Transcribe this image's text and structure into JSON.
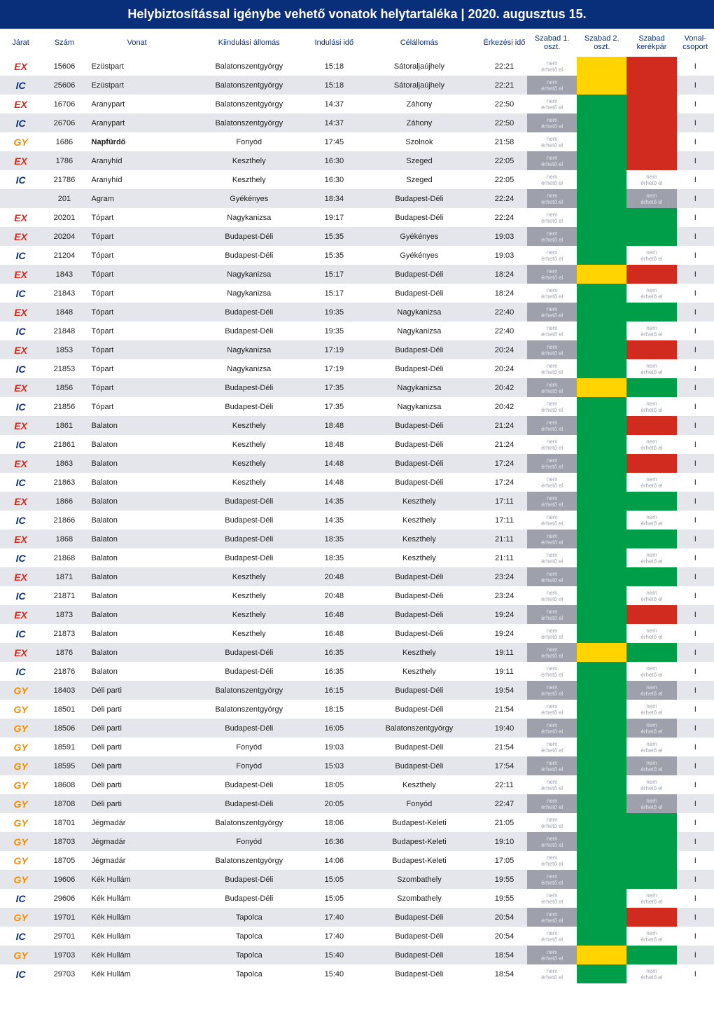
{
  "title": "Helybiztosítással igénybe vehető vonatok helytartaléka | 2020. augusztus 15.",
  "jarat_colors": {
    "EX": "#d12a1f",
    "IC": "#0a2f7a",
    "GY": "#f28c00",
    "": "#202020"
  },
  "headers": {
    "jarat": "Járat",
    "szam": "Szám",
    "vonat": "Vonat",
    "kiind": "Kiindulási állomás",
    "iido": "Indulási idő",
    "cel": "Célállomás",
    "eido": "Érkezési idő",
    "sz1": "Szabad 1. oszt.",
    "sz2": "Szabad 2. oszt.",
    "szk": "Szabad kerékpár",
    "vcs": "Vonal-csoport"
  },
  "cell_note": "nem érhető el",
  "rows": [
    {
      "j": "EX",
      "s": "15606",
      "v": "Ezüstpart",
      "k": "Balatonszentgyörgy",
      "ii": "15:18",
      "c": "Sátoraljaújhely",
      "ei": "22:21",
      "c1": "wn",
      "c2": "y",
      "c3": "r",
      "vc": "I"
    },
    {
      "j": "IC",
      "s": "25606",
      "v": "Ezüstpart",
      "k": "Balatonszentgyörgy",
      "ii": "15:18",
      "c": "Sátoraljaújhely",
      "ei": "22:21",
      "c1": "gn",
      "c2": "y",
      "c3": "r",
      "vc": "I"
    },
    {
      "j": "EX",
      "s": "16706",
      "v": "Aranypart",
      "k": "Balatonszentgyörgy",
      "ii": "14:37",
      "c": "Záhony",
      "ei": "22:50",
      "c1": "wn",
      "c2": "g",
      "c3": "r",
      "vc": "I"
    },
    {
      "j": "IC",
      "s": "26706",
      "v": "Aranypart",
      "k": "Balatonszentgyörgy",
      "ii": "14:37",
      "c": "Záhony",
      "ei": "22:50",
      "c1": "gn",
      "c2": "g",
      "c3": "r",
      "vc": "I"
    },
    {
      "j": "GY",
      "s": "1686",
      "v": "Napfürdő",
      "vb": true,
      "k": "Fonyód",
      "ii": "17:45",
      "c": "Szolnok",
      "ei": "21:58",
      "c1": "wn",
      "c2": "g",
      "c3": "r",
      "vc": "I"
    },
    {
      "j": "EX",
      "s": "1786",
      "v": "Aranyhíd",
      "k": "Keszthely",
      "ii": "16:30",
      "c": "Szeged",
      "ei": "22:05",
      "c1": "gn",
      "c2": "g",
      "c3": "r",
      "vc": "I"
    },
    {
      "j": "IC",
      "s": "21786",
      "v": "Aranyhíd",
      "k": "Keszthely",
      "ii": "16:30",
      "c": "Szeged",
      "ei": "22:05",
      "c1": "wn",
      "c2": "g",
      "c3": "wn",
      "vc": "I"
    },
    {
      "j": "",
      "s": "201",
      "v": "Agram",
      "k": "Gyékényes",
      "ii": "18:34",
      "c": "Budapest-Déli",
      "ei": "22:24",
      "c1": "gn",
      "c2": "g",
      "c3": "gn",
      "vc": "I"
    },
    {
      "j": "EX",
      "s": "20201",
      "v": "Tópart",
      "k": "Nagykanizsa",
      "ii": "19:17",
      "c": "Budapest-Déli",
      "ei": "22:24",
      "c1": "wn",
      "c2": "g",
      "c3": "g",
      "vc": "I"
    },
    {
      "j": "EX",
      "s": "20204",
      "v": "Tópart",
      "k": "Budapest-Déli",
      "ii": "15:35",
      "c": "Gyékényes",
      "ei": "19:03",
      "c1": "gn",
      "c2": "g",
      "c3": "g",
      "vc": "I"
    },
    {
      "j": "IC",
      "s": "21204",
      "v": "Tópart",
      "k": "Budapest-Déli",
      "ii": "15:35",
      "c": "Gyékényes",
      "ei": "19:03",
      "c1": "wn",
      "c2": "g",
      "c3": "wn",
      "vc": "I"
    },
    {
      "j": "EX",
      "s": "1843",
      "v": "Tópart",
      "k": "Nagykanizsa",
      "ii": "15:17",
      "c": "Budapest-Déli",
      "ei": "18:24",
      "c1": "gn",
      "c2": "y",
      "c3": "r",
      "vc": "I"
    },
    {
      "j": "IC",
      "s": "21843",
      "v": "Tópart",
      "k": "Nagykanizsa",
      "ii": "15:17",
      "c": "Budapest-Déli",
      "ei": "18:24",
      "c1": "wn",
      "c2": "g",
      "c3": "wn",
      "vc": "I"
    },
    {
      "j": "EX",
      "s": "1848",
      "v": "Tópart",
      "k": "Budapest-Déli",
      "ii": "19:35",
      "c": "Nagykanizsa",
      "ei": "22:40",
      "c1": "gn",
      "c2": "g",
      "c3": "g",
      "vc": "I"
    },
    {
      "j": "IC",
      "s": "21848",
      "v": "Tópart",
      "k": "Budapest-Déli",
      "ii": "19:35",
      "c": "Nagykanizsa",
      "ei": "22:40",
      "c1": "wn",
      "c2": "g",
      "c3": "wn",
      "vc": "I"
    },
    {
      "j": "EX",
      "s": "1853",
      "v": "Tópart",
      "k": "Nagykanizsa",
      "ii": "17:19",
      "c": "Budapest-Déli",
      "ei": "20:24",
      "c1": "gn",
      "c2": "g",
      "c3": "r",
      "vc": "I"
    },
    {
      "j": "IC",
      "s": "21853",
      "v": "Tópart",
      "k": "Nagykanizsa",
      "ii": "17:19",
      "c": "Budapest-Déli",
      "ei": "20:24",
      "c1": "wn",
      "c2": "g",
      "c3": "wn",
      "vc": "I"
    },
    {
      "j": "EX",
      "s": "1856",
      "v": "Tópart",
      "k": "Budapest-Déli",
      "ii": "17:35",
      "c": "Nagykanizsa",
      "ei": "20:42",
      "c1": "gn",
      "c2": "y",
      "c3": "g",
      "vc": "I"
    },
    {
      "j": "IC",
      "s": "21856",
      "v": "Tópart",
      "k": "Budapest-Déli",
      "ii": "17:35",
      "c": "Nagykanizsa",
      "ei": "20:42",
      "c1": "wn",
      "c2": "g",
      "c3": "wn",
      "vc": "I"
    },
    {
      "j": "EX",
      "s": "1861",
      "v": "Balaton",
      "k": "Keszthely",
      "ii": "18:48",
      "c": "Budapest-Déli",
      "ei": "21:24",
      "c1": "gn",
      "c2": "g",
      "c3": "r",
      "vc": "I"
    },
    {
      "j": "IC",
      "s": "21861",
      "v": "Balaton",
      "k": "Keszthely",
      "ii": "18:48",
      "c": "Budapest-Déli",
      "ei": "21:24",
      "c1": "wn",
      "c2": "g",
      "c3": "wn",
      "vc": "I"
    },
    {
      "j": "EX",
      "s": "1863",
      "v": "Balaton",
      "k": "Keszthely",
      "ii": "14:48",
      "c": "Budapest-Déli",
      "ei": "17:24",
      "c1": "gn",
      "c2": "g",
      "c3": "r",
      "vc": "I"
    },
    {
      "j": "IC",
      "s": "21863",
      "v": "Balaton",
      "k": "Keszthely",
      "ii": "14:48",
      "c": "Budapest-Déli",
      "ei": "17:24",
      "c1": "wn",
      "c2": "g",
      "c3": "wn",
      "vc": "I"
    },
    {
      "j": "EX",
      "s": "1866",
      "v": "Balaton",
      "k": "Budapest-Déli",
      "ii": "14:35",
      "c": "Keszthely",
      "ei": "17:11",
      "c1": "gn",
      "c2": "g",
      "c3": "g",
      "vc": "I"
    },
    {
      "j": "IC",
      "s": "21866",
      "v": "Balaton",
      "k": "Budapest-Déli",
      "ii": "14:35",
      "c": "Keszthely",
      "ei": "17:11",
      "c1": "wn",
      "c2": "g",
      "c3": "wn",
      "vc": "I"
    },
    {
      "j": "EX",
      "s": "1868",
      "v": "Balaton",
      "k": "Budapest-Déli",
      "ii": "18:35",
      "c": "Keszthely",
      "ei": "21:11",
      "c1": "gn",
      "c2": "g",
      "c3": "g",
      "vc": "I"
    },
    {
      "j": "IC",
      "s": "21868",
      "v": "Balaton",
      "k": "Budapest-Déli",
      "ii": "18:35",
      "c": "Keszthely",
      "ei": "21:11",
      "c1": "wn",
      "c2": "g",
      "c3": "wn",
      "vc": "I"
    },
    {
      "j": "EX",
      "s": "1871",
      "v": "Balaton",
      "k": "Keszthely",
      "ii": "20:48",
      "c": "Budapest-Déli",
      "ei": "23:24",
      "c1": "gn",
      "c2": "g",
      "c3": "g",
      "vc": "I"
    },
    {
      "j": "IC",
      "s": "21871",
      "v": "Balaton",
      "k": "Keszthely",
      "ii": "20:48",
      "c": "Budapest-Déli",
      "ei": "23:24",
      "c1": "wn",
      "c2": "g",
      "c3": "wn",
      "vc": "I"
    },
    {
      "j": "EX",
      "s": "1873",
      "v": "Balaton",
      "k": "Keszthely",
      "ii": "16:48",
      "c": "Budapest-Déli",
      "ei": "19:24",
      "c1": "gn",
      "c2": "g",
      "c3": "r",
      "vc": "I"
    },
    {
      "j": "IC",
      "s": "21873",
      "v": "Balaton",
      "k": "Keszthely",
      "ii": "16:48",
      "c": "Budapest-Déli",
      "ei": "19:24",
      "c1": "wn",
      "c2": "g",
      "c3": "wn",
      "vc": "I"
    },
    {
      "j": "EX",
      "s": "1876",
      "v": "Balaton",
      "k": "Budapest-Déli",
      "ii": "16:35",
      "c": "Keszthely",
      "ei": "19:11",
      "c1": "gn",
      "c2": "y",
      "c3": "g",
      "vc": "I"
    },
    {
      "j": "IC",
      "s": "21876",
      "v": "Balaton",
      "k": "Budapest-Déli",
      "ii": "16:35",
      "c": "Keszthely",
      "ei": "19:11",
      "c1": "wn",
      "c2": "g",
      "c3": "wn",
      "vc": "I"
    },
    {
      "j": "GY",
      "s": "18403",
      "v": "Déli parti",
      "k": "Balatonszentgyörgy",
      "ii": "16:15",
      "c": "Budapest-Déli",
      "ei": "19:54",
      "c1": "gn",
      "c2": "g",
      "c3": "gn",
      "vc": "I"
    },
    {
      "j": "GY",
      "s": "18501",
      "v": "Déli parti",
      "k": "Balatonszentgyörgy",
      "ii": "18:15",
      "c": "Budapest-Déli",
      "ei": "21:54",
      "c1": "wn",
      "c2": "g",
      "c3": "wn",
      "vc": "I"
    },
    {
      "j": "GY",
      "s": "18506",
      "v": "Déli parti",
      "k": "Budapest-Déli",
      "ii": "16:05",
      "c": "Balatonszentgyörgy",
      "ei": "19:40",
      "c1": "gn",
      "c2": "g",
      "c3": "gn",
      "vc": "I"
    },
    {
      "j": "GY",
      "s": "18591",
      "v": "Déli parti",
      "k": "Fonyód",
      "ii": "19:03",
      "c": "Budapest-Déli",
      "ei": "21:54",
      "c1": "wn",
      "c2": "g",
      "c3": "wn",
      "vc": "I"
    },
    {
      "j": "GY",
      "s": "18595",
      "v": "Déli parti",
      "k": "Fonyód",
      "ii": "15:03",
      "c": "Budapest-Déli",
      "ei": "17:54",
      "c1": "gn",
      "c2": "g",
      "c3": "gn",
      "vc": "I"
    },
    {
      "j": "GY",
      "s": "18608",
      "v": "Déli parti",
      "k": "Budapest-Déli",
      "ii": "18:05",
      "c": "Keszthely",
      "ei": "22:11",
      "c1": "wn",
      "c2": "g",
      "c3": "wn",
      "vc": "I"
    },
    {
      "j": "GY",
      "s": "18708",
      "v": "Déli parti",
      "k": "Budapest-Déli",
      "ii": "20:05",
      "c": "Fonyód",
      "ei": "22:47",
      "c1": "gn",
      "c2": "g",
      "c3": "gn",
      "vc": "I"
    },
    {
      "j": "GY",
      "s": "18701",
      "v": "Jégmadár",
      "k": "Balatonszentgyörgy",
      "ii": "18:06",
      "c": "Budapest-Keleti",
      "ei": "21:05",
      "c1": "wn",
      "c2": "g",
      "c3": "g",
      "vc": "I"
    },
    {
      "j": "GY",
      "s": "18703",
      "v": "Jégmadár",
      "k": "Fonyód",
      "ii": "16:36",
      "c": "Budapest-Keleti",
      "ei": "19:10",
      "c1": "gn",
      "c2": "g",
      "c3": "g",
      "vc": "I"
    },
    {
      "j": "GY",
      "s": "18705",
      "v": "Jégmadár",
      "k": "Balatonszentgyörgy",
      "ii": "14:06",
      "c": "Budapest-Keleti",
      "ei": "17:05",
      "c1": "wn",
      "c2": "g",
      "c3": "g",
      "vc": "I"
    },
    {
      "j": "GY",
      "s": "19606",
      "v": "Kék Hullám",
      "k": "Budapest-Déli",
      "ii": "15:05",
      "c": "Szombathely",
      "ei": "19:55",
      "c1": "gn",
      "c2": "g",
      "c3": "g",
      "vc": "I"
    },
    {
      "j": "IC",
      "s": "29606",
      "v": "Kék Hullám",
      "k": "Budapest-Déli",
      "ii": "15:05",
      "c": "Szombathely",
      "ei": "19:55",
      "c1": "wn",
      "c2": "g",
      "c3": "wn",
      "vc": "I"
    },
    {
      "j": "GY",
      "s": "19701",
      "v": "Kék Hullám",
      "k": "Tapolca",
      "ii": "17:40",
      "c": "Budapest-Déli",
      "ei": "20:54",
      "c1": "gn",
      "c2": "g",
      "c3": "r",
      "vc": "I"
    },
    {
      "j": "IC",
      "s": "29701",
      "v": "Kék Hullám",
      "k": "Tapolca",
      "ii": "17:40",
      "c": "Budapest-Déli",
      "ei": "20:54",
      "c1": "wn",
      "c2": "g",
      "c3": "wn",
      "vc": "I"
    },
    {
      "j": "GY",
      "s": "19703",
      "v": "Kék Hullám",
      "k": "Tapolca",
      "ii": "15:40",
      "c": "Budapest-Déli",
      "ei": "18:54",
      "c1": "gn",
      "c2": "y",
      "c3": "g",
      "vc": "I"
    },
    {
      "j": "IC",
      "s": "29703",
      "v": "Kék Hullám",
      "k": "Tapolca",
      "ii": "15:40",
      "c": "Budapest-Déli",
      "ei": "18:54",
      "c1": "wn",
      "c2": "g",
      "c3": "wn",
      "vc": "I"
    }
  ]
}
